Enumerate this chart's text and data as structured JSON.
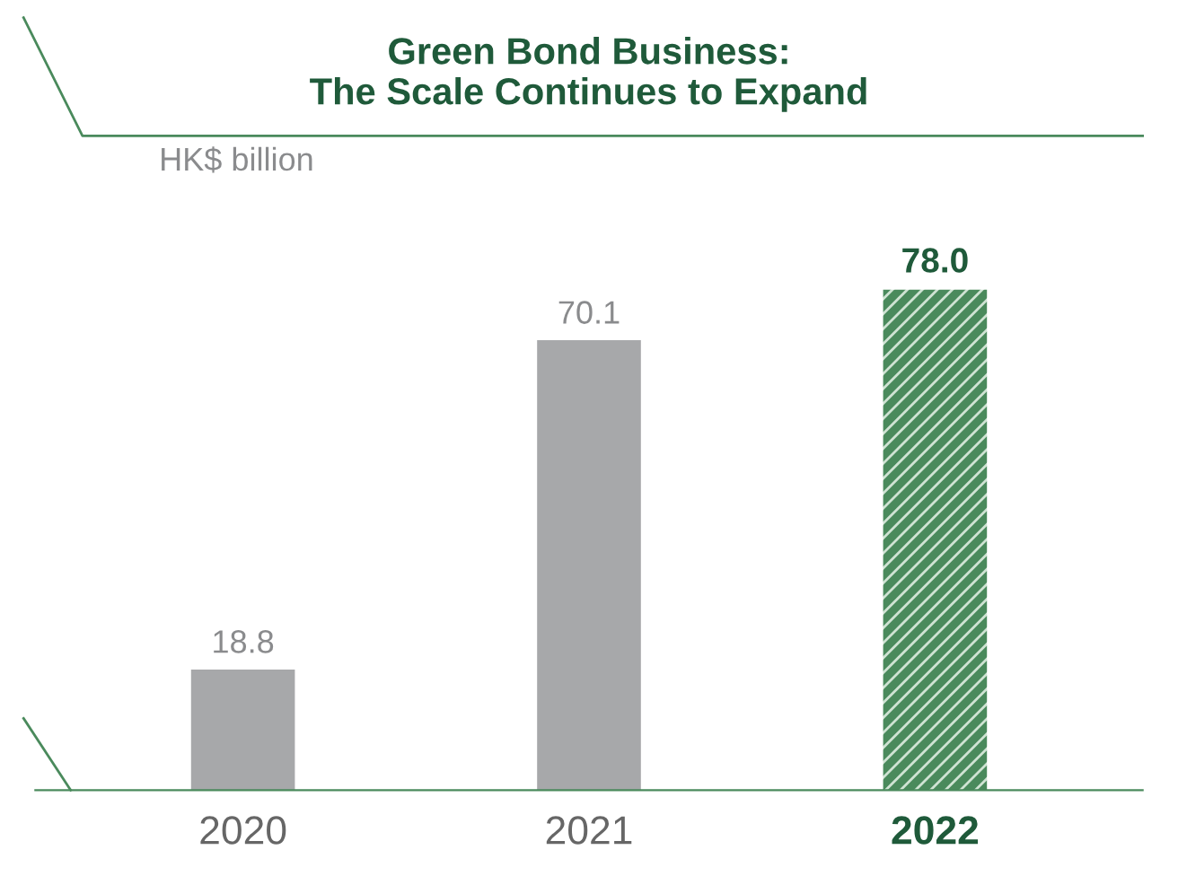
{
  "chart_data": {
    "type": "bar",
    "title": "Green Bond Business:\nThe Scale Continues to Expand",
    "ylabel": "HK$ billion",
    "categories": [
      "2020",
      "2021",
      "2022"
    ],
    "values": [
      18.8,
      70.1,
      78.0
    ],
    "colors": [
      "#a7a8aa",
      "#a7a8aa",
      "#4a8a5c"
    ],
    "value_labels": [
      "18.8",
      "70.1",
      "78.0"
    ],
    "grid": false,
    "legend": false
  }
}
